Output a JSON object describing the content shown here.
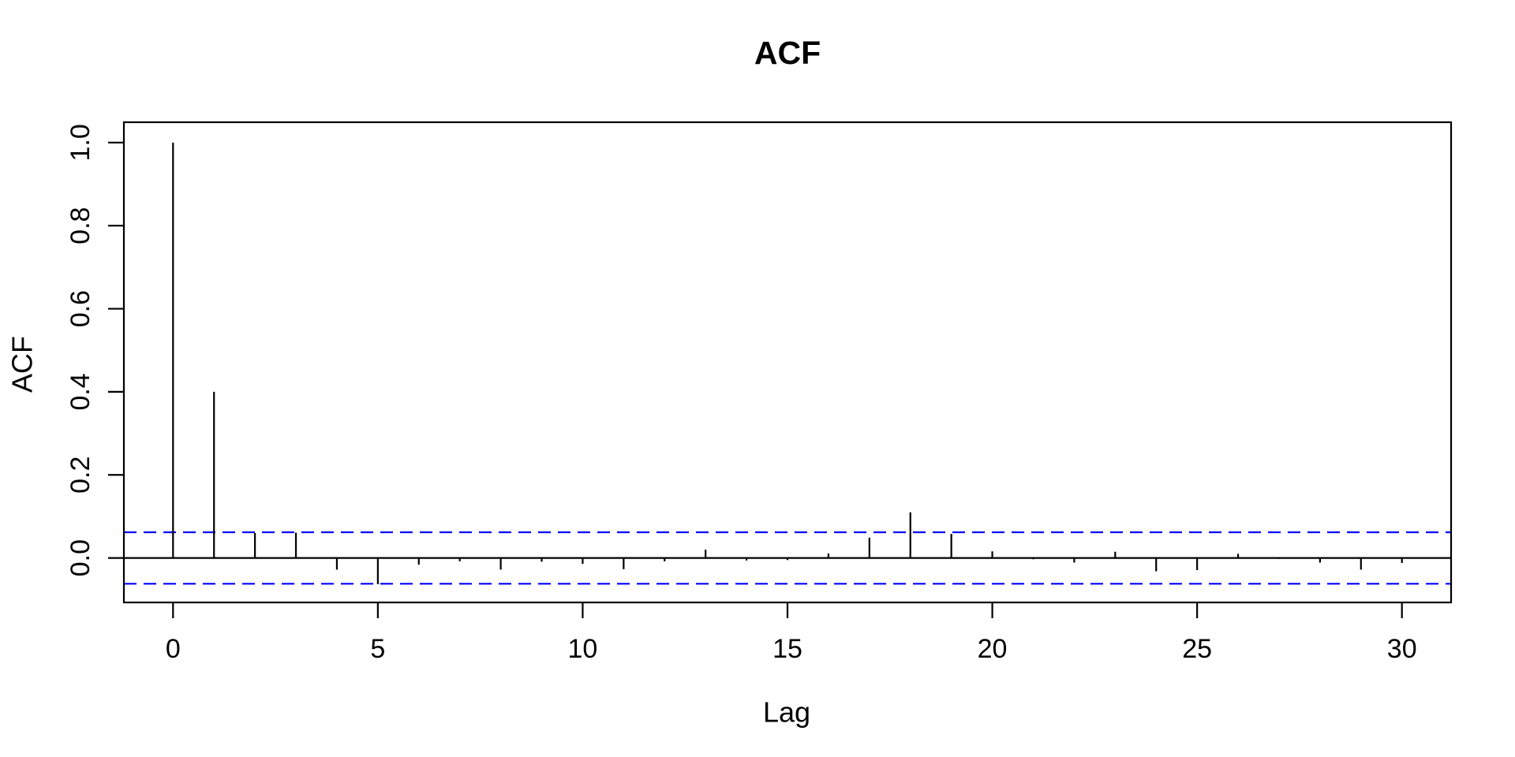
{
  "figure": {
    "background_color": "#FFFFFF",
    "text_color": "#000000"
  },
  "chart_data": {
    "type": "bar",
    "subtype": "acf-needle-plot",
    "title": "ACF",
    "xlabel": "Lag",
    "ylabel": "ACF",
    "x": [
      0,
      1,
      2,
      3,
      4,
      5,
      6,
      7,
      8,
      9,
      10,
      11,
      12,
      13,
      14,
      15,
      16,
      17,
      18,
      19,
      20,
      21,
      22,
      23,
      24,
      25,
      26,
      27,
      28,
      29,
      30
    ],
    "values": [
      1.0,
      0.4,
      0.06,
      0.061,
      -0.028,
      -0.063,
      -0.016,
      -0.008,
      -0.028,
      -0.009,
      -0.014,
      -0.027,
      -0.008,
      0.02,
      -0.006,
      -0.005,
      0.011,
      0.049,
      0.11,
      0.058,
      0.016,
      -0.003,
      -0.011,
      0.015,
      -0.032,
      -0.029,
      0.01,
      -0.002,
      -0.011,
      -0.028,
      -0.012
    ],
    "confidence_bounds": {
      "upper": 0.062,
      "lower": -0.062,
      "color": "#0000FF",
      "style": "dashed"
    },
    "bar_color": "#000000",
    "xticks": [
      0,
      5,
      10,
      15,
      20,
      25,
      30
    ],
    "xtick_labels": [
      "0",
      "5",
      "10",
      "15",
      "20",
      "25",
      "30"
    ],
    "yticks": [
      0.0,
      0.2,
      0.4,
      0.6,
      0.8,
      1.0
    ],
    "ytick_labels": [
      "0.0",
      "0.2",
      "0.4",
      "0.6",
      "0.8",
      "1.0"
    ],
    "xlim": [
      -1.2,
      31.2
    ],
    "ylim": [
      -0.107,
      1.049
    ],
    "grid": false,
    "legend_position": "none"
  }
}
